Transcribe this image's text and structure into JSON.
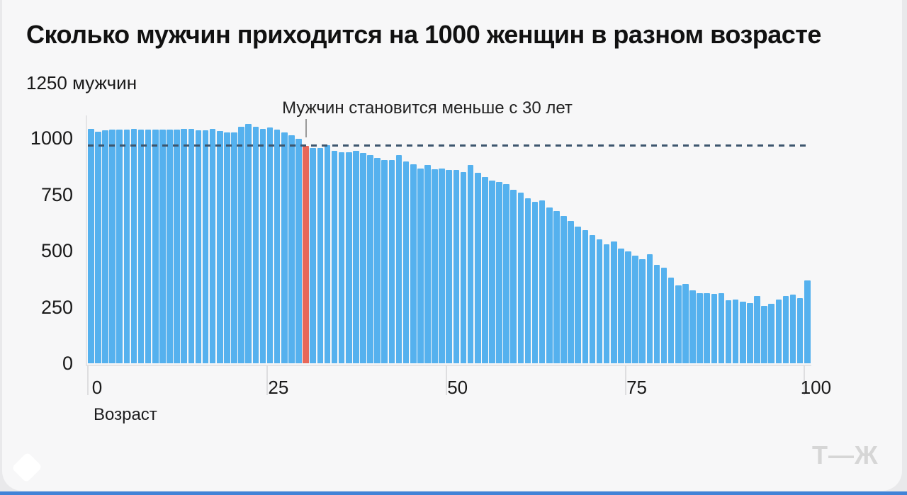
{
  "chart_data": {
    "type": "bar",
    "title": "Сколько мужчин приходится на 1000 женщин в разном возрасте",
    "y_axis_top_label": "1250 мужчин",
    "xlabel": "Возраст",
    "ylim": [
      0,
      1250
    ],
    "y_ticks": [
      1000,
      750,
      500,
      250,
      0
    ],
    "x_ticks": [
      0,
      25,
      50,
      75,
      100
    ],
    "grid": false,
    "legend": false,
    "annotation": {
      "text": "Мужчин становится меньше с 30 лет",
      "target_age": 30
    },
    "highlight_age": 30,
    "reference_line_value": 964,
    "x_start_age": 0,
    "values": [
      1040,
      1028,
      1034,
      1038,
      1038,
      1038,
      1040,
      1038,
      1038,
      1038,
      1038,
      1038,
      1038,
      1040,
      1042,
      1034,
      1034,
      1040,
      1032,
      1026,
      1026,
      1052,
      1062,
      1052,
      1040,
      1048,
      1038,
      1026,
      1012,
      998,
      964,
      956,
      956,
      969,
      943,
      938,
      938,
      942,
      934,
      926,
      912,
      904,
      904,
      924,
      896,
      884,
      866,
      880,
      862,
      866,
      860,
      860,
      850,
      880,
      845,
      828,
      812,
      805,
      796,
      772,
      758,
      734,
      717,
      723,
      692,
      676,
      654,
      632,
      607,
      591,
      570,
      550,
      527,
      540,
      509,
      497,
      478,
      462,
      484,
      437,
      425,
      380,
      346,
      352,
      324,
      311,
      311,
      308,
      311,
      281,
      283,
      274,
      268,
      300,
      255,
      265,
      284,
      300,
      304,
      288,
      367
    ],
    "colors": {
      "bar": "#55b1ee",
      "highlight_bar": "#e86759",
      "reference_line": "#3d566e",
      "background": "#f7f7f8"
    }
  },
  "footer": {
    "logo": "Т—Ж"
  }
}
